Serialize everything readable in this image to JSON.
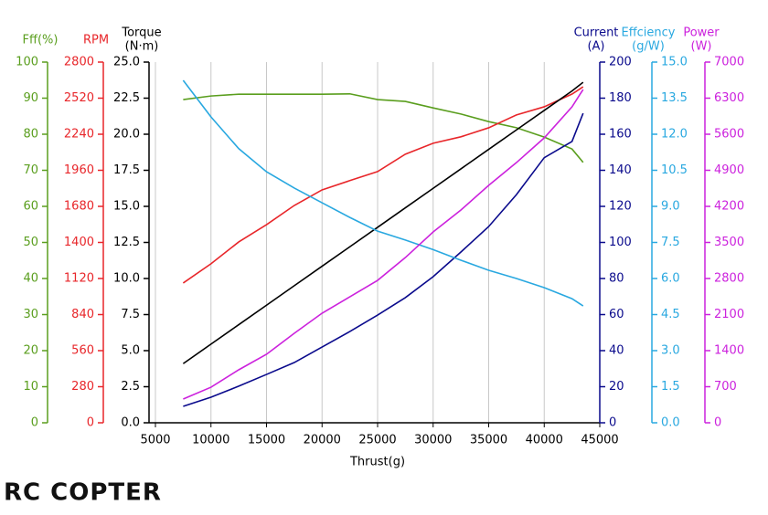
{
  "chart_data": {
    "type": "line",
    "xlabel": "Thrust(g)",
    "x": [
      7500,
      10000,
      12500,
      15000,
      17500,
      20000,
      22500,
      25000,
      27500,
      30000,
      32500,
      35000,
      37500,
      40000,
      42500,
      43500
    ],
    "xlim": [
      5000,
      45000
    ],
    "xticks": [
      5000,
      10000,
      15000,
      20000,
      25000,
      30000,
      35000,
      40000,
      45000
    ],
    "grid": true,
    "y_axes": [
      {
        "label": [
          "Fff(%)"
        ],
        "color": "#5a9e1e",
        "side": "left",
        "lim": [
          0,
          100
        ],
        "ticks": [
          0,
          10,
          20,
          30,
          40,
          50,
          60,
          70,
          80,
          90,
          100
        ]
      },
      {
        "label": [
          "RPM"
        ],
        "color": "#e8262a",
        "side": "left",
        "lim": [
          0,
          2800
        ],
        "ticks": [
          0,
          280,
          560,
          840,
          1120,
          1400,
          1680,
          1960,
          2240,
          2520,
          2800
        ]
      },
      {
        "label": [
          "Torque",
          "(N·m)"
        ],
        "color": "#000000",
        "side": "left",
        "lim": [
          0,
          25
        ],
        "ticks": [
          {
            "value": 0,
            "label": "0.0"
          },
          2.5,
          {
            "value": 5,
            "label": "5.0"
          },
          7.5,
          {
            "value": 10,
            "label": "10.0"
          },
          12.5,
          {
            "value": 15,
            "label": "15.0"
          },
          17.5,
          {
            "value": 20,
            "label": "20.0"
          },
          22.5,
          {
            "value": 25,
            "label": "25.0"
          }
        ]
      },
      {
        "label": [
          "Current",
          "(A)"
        ],
        "color": "#0a0a8c",
        "side": "right",
        "lim": [
          0,
          200
        ],
        "ticks": [
          0,
          20,
          40,
          60,
          80,
          100,
          120,
          140,
          160,
          180,
          200
        ]
      },
      {
        "label": [
          "Effciency",
          "(g/W)"
        ],
        "color": "#29a8e0",
        "side": "right",
        "lim": [
          0,
          15
        ],
        "ticks": [
          {
            "value": 0,
            "label": "0.0"
          },
          1.5,
          {
            "value": 3,
            "label": "3.0"
          },
          4.5,
          {
            "value": 6,
            "label": "6.0"
          },
          7.5,
          {
            "value": 9,
            "label": "9.0"
          },
          10.5,
          {
            "value": 12,
            "label": "12.0"
          },
          13.5,
          {
            "value": 15,
            "label": "15.0"
          }
        ]
      },
      {
        "label": [
          "Power",
          "(W)"
        ],
        "color": "#cc22dd",
        "side": "right",
        "lim": [
          0,
          7000
        ],
        "ticks": [
          0,
          700,
          1400,
          2100,
          2800,
          3500,
          4200,
          4900,
          5600,
          6300,
          7000
        ]
      }
    ],
    "series": [
      {
        "color": "#5a9e1e",
        "axis": 0,
        "values": [
          89.6,
          90.6,
          91.1,
          91.1,
          91.1,
          91.1,
          91.2,
          89.6,
          89.1,
          87.3,
          85.6,
          83.5,
          81.8,
          79.2,
          75.9,
          72.2
        ]
      },
      {
        "color": "#e8262a",
        "axis": 1,
        "values": [
          1085,
          1234,
          1404,
          1538,
          1687,
          1808,
          1880,
          1950,
          2085,
          2170,
          2220,
          2290,
          2390,
          2453,
          2552,
          2608
        ]
      },
      {
        "color": "#000000",
        "axis": 2,
        "values": [
          4.1,
          5.45,
          6.8,
          8.15,
          9.5,
          10.85,
          12.2,
          13.55,
          14.9,
          16.25,
          17.6,
          18.95,
          20.3,
          21.65,
          23.0,
          23.6
        ]
      },
      {
        "color": "#0a0a8c",
        "axis": 3,
        "values": [
          9.1,
          14.2,
          20.3,
          26.8,
          33.4,
          42,
          50.6,
          59.7,
          69.4,
          81,
          94.7,
          108.8,
          126.5,
          147,
          156,
          171.6
        ]
      },
      {
        "color": "#29a8e0",
        "axis": 4,
        "values": [
          14.24,
          12.72,
          11.4,
          10.44,
          9.76,
          9.15,
          8.54,
          7.97,
          7.6,
          7.2,
          6.76,
          6.34,
          6.0,
          5.62,
          5.16,
          4.86
        ]
      },
      {
        "color": "#cc22dd",
        "axis": 5,
        "values": [
          460,
          690,
          1028,
          1329,
          1737,
          2126,
          2445,
          2764,
          3207,
          3703,
          4129,
          4607,
          5050,
          5529,
          6131,
          6468
        ]
      }
    ]
  },
  "logo_text": "RC COPTER"
}
